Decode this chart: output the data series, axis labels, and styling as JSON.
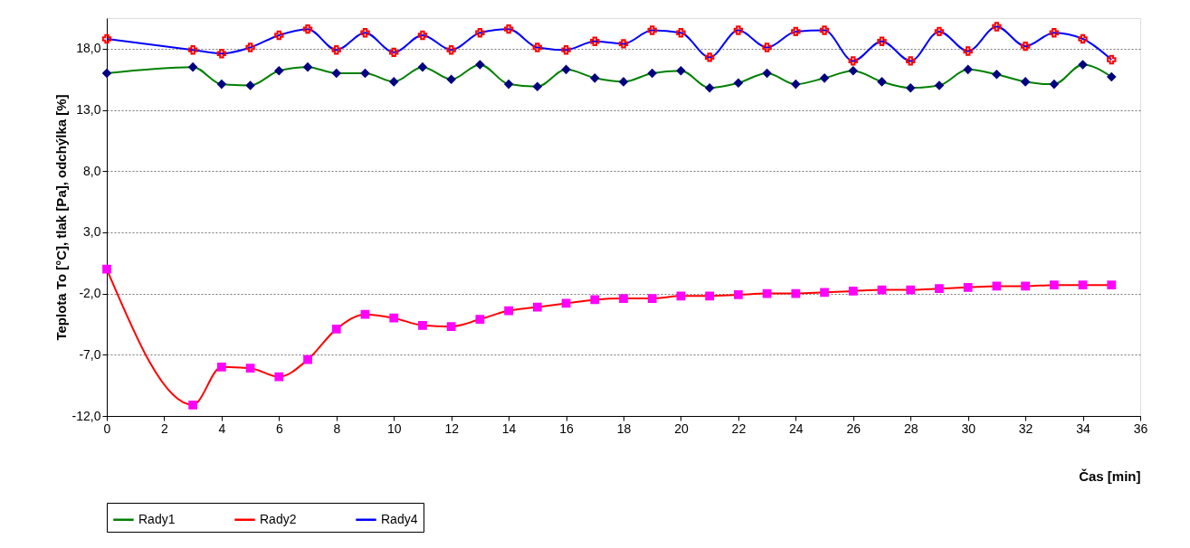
{
  "chart_data": {
    "type": "line",
    "xlabel": "Čas [min]",
    "ylabel": "Teplota To [°C], tlak [Pa], odchýlka [%]",
    "x": [
      0,
      3,
      4,
      5,
      6,
      7,
      8,
      9,
      10,
      11,
      12,
      13,
      14,
      15,
      16,
      17,
      18,
      19,
      20,
      21,
      22,
      23,
      24,
      25,
      26,
      27,
      28,
      29,
      30,
      31,
      32,
      33,
      34,
      35
    ],
    "series": [
      {
        "name": "Rady1",
        "color": "#008000",
        "marker": "diamond",
        "colors": [
          "#000080",
          "#000080",
          "#000080",
          "#000080",
          "#000080",
          "#000080",
          "#000080",
          "#000080",
          "#000080",
          "#000080",
          "#000080",
          "#000080",
          "#000080",
          "#000080",
          "#000080",
          "#000080",
          "#000080",
          "#000080",
          "#000080",
          "#000080",
          "#000080",
          "#000080",
          "#000080",
          "#000080",
          "#000080",
          "#000080",
          "#000080",
          "#000080",
          "#000080",
          "#000080",
          "#000080",
          "#000080",
          "#000080",
          "#000080"
        ],
        "values": [
          16.0,
          16.5,
          15.1,
          15.0,
          16.2,
          16.5,
          16.0,
          16.0,
          15.3,
          16.5,
          15.5,
          16.7,
          15.1,
          14.9,
          16.3,
          15.6,
          15.3,
          16.0,
          16.2,
          14.8,
          15.2,
          16.0,
          15.1,
          15.6,
          16.2,
          15.3,
          14.8,
          15.0,
          16.3,
          15.9,
          15.3,
          15.1,
          16.7,
          15.7
        ]
      },
      {
        "name": "Rady2",
        "color": "#ff0000",
        "marker": "square",
        "colors": [
          "#ff00ff",
          "#ff00ff",
          "#ff00ff",
          "#ff00ff",
          "#ff00ff",
          "#ff00ff",
          "#ff00ff",
          "#ff00ff",
          "#ff00ff",
          "#ff00ff",
          "#ff00ff",
          "#ff00ff",
          "#ff00ff",
          "#ff00ff",
          "#ff00ff",
          "#ff00ff",
          "#ff00ff",
          "#ff00ff",
          "#ff00ff",
          "#ff00ff",
          "#ff00ff",
          "#ff00ff",
          "#ff00ff",
          "#ff00ff",
          "#ff00ff",
          "#ff00ff",
          "#ff00ff",
          "#ff00ff",
          "#ff00ff",
          "#ff00ff",
          "#ff00ff",
          "#ff00ff",
          "#ff00ff",
          "#ff00ff"
        ],
        "values": [
          0.0,
          -11.1,
          -8.0,
          -8.1,
          -8.8,
          -7.4,
          -4.9,
          -3.7,
          -4.0,
          -4.6,
          -4.7,
          -4.1,
          -3.4,
          -3.1,
          -2.8,
          -2.5,
          -2.4,
          -2.4,
          -2.2,
          -2.2,
          -2.1,
          -2.0,
          -2.0,
          -1.9,
          -1.8,
          -1.7,
          -1.7,
          -1.6,
          -1.5,
          -1.4,
          -1.4,
          -1.3,
          -1.3,
          -1.3
        ]
      },
      {
        "name": "Rady4",
        "color": "#0000ff",
        "marker": "cross",
        "colors": [
          "#ff0000",
          "#ff0000",
          "#ff0000",
          "#ff0000",
          "#ff0000",
          "#ff0000",
          "#ff0000",
          "#ff0000",
          "#ff0000",
          "#ff0000",
          "#ff0000",
          "#ff0000",
          "#ff0000",
          "#ff0000",
          "#ff0000",
          "#ff0000",
          "#ff0000",
          "#ff0000",
          "#ff0000",
          "#ff0000",
          "#ff0000",
          "#ff0000",
          "#ff0000",
          "#ff0000",
          "#ff0000",
          "#ff0000",
          "#ff0000",
          "#ff0000",
          "#ff0000",
          "#ff0000",
          "#ff0000",
          "#ff0000",
          "#ff0000",
          "#ff0000"
        ],
        "values": [
          18.8,
          17.9,
          17.6,
          18.1,
          19.1,
          19.6,
          17.9,
          19.3,
          17.7,
          19.1,
          17.9,
          19.3,
          19.6,
          18.1,
          17.9,
          18.6,
          18.4,
          19.5,
          19.3,
          17.3,
          19.5,
          18.1,
          19.4,
          19.5,
          17.0,
          18.6,
          17.0,
          19.4,
          17.8,
          19.8,
          18.2,
          19.3,
          18.8,
          17.1
        ]
      }
    ],
    "xlim": [
      0,
      36
    ],
    "xticks": [
      0,
      2,
      4,
      6,
      8,
      10,
      12,
      14,
      16,
      18,
      20,
      22,
      24,
      26,
      28,
      30,
      32,
      34,
      36
    ],
    "ylim": [
      -12,
      20.5
    ],
    "yticks": [
      {
        "value": -12,
        "label": "-12,0"
      },
      {
        "value": -7,
        "label": "-7,0"
      },
      {
        "value": -2,
        "label": "-2,0"
      },
      {
        "value": 3,
        "label": "3,0"
      },
      {
        "value": 8,
        "label": "8,0"
      },
      {
        "value": 13,
        "label": "13,0"
      },
      {
        "value": 18,
        "label": "18,0"
      }
    ],
    "grid": "y",
    "legend": "bottom left",
    "line_style": "solid"
  }
}
